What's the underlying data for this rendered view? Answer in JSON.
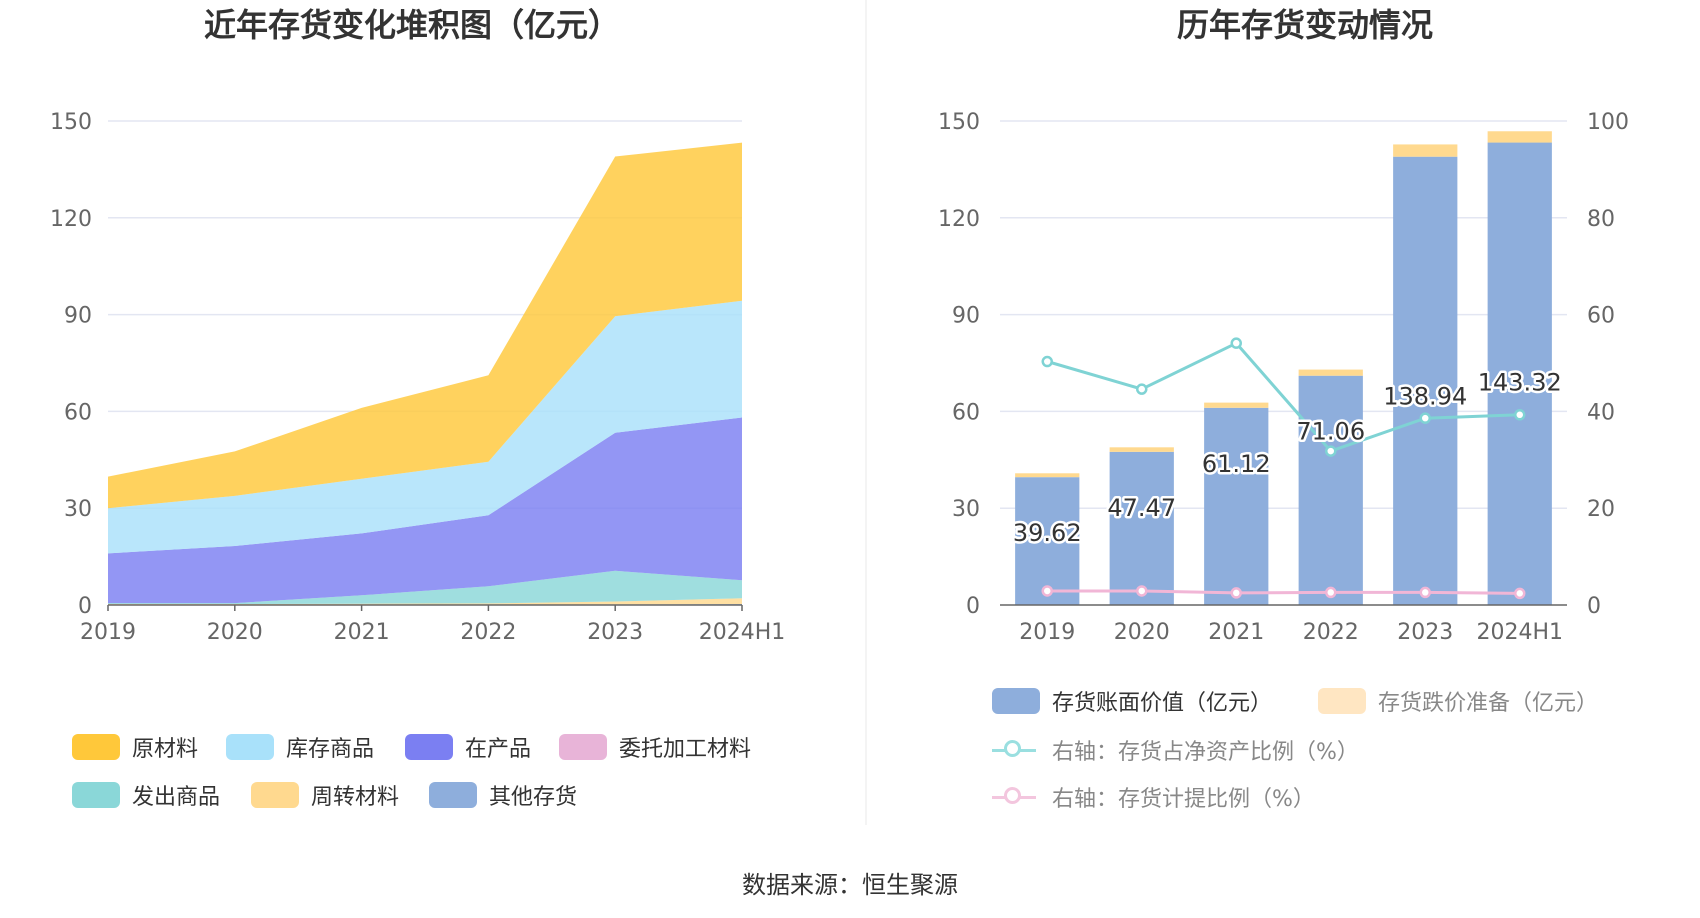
{
  "source": "数据来源：恒生聚源",
  "chart_data": [
    {
      "type": "area",
      "stacked": true,
      "title": "近年存货变化堆积图（亿元）",
      "categories": [
        "2019",
        "2020",
        "2021",
        "2022",
        "2023",
        "2024H1"
      ],
      "ylim": [
        0,
        150
      ],
      "yticks": [
        "0",
        "30",
        "60",
        "90",
        "120",
        "150"
      ],
      "series": [
        {
          "name": "其他存货",
          "color": "#8eaedc",
          "values": [
            0.1,
            0.1,
            0.1,
            0.1,
            0.2,
            0.3
          ]
        },
        {
          "name": "周转材料",
          "color": "#ffd98f",
          "values": [
            0.2,
            0.2,
            0.3,
            0.4,
            0.9,
            1.8
          ]
        },
        {
          "name": "发出商品",
          "color": "#8ad7d8",
          "values": [
            0.3,
            0.3,
            2.6,
            5.3,
            9.5,
            5.6
          ]
        },
        {
          "name": "委托加工材料",
          "color": "#e8b4d8",
          "values": [
            0,
            0,
            0,
            0,
            0,
            0
          ]
        },
        {
          "name": "在产品",
          "color": "#7b7ff2",
          "values": [
            15.4,
            17.7,
            19.2,
            22.0,
            42.8,
            50.4
          ]
        },
        {
          "name": "库存商品",
          "color": "#a9e1fa",
          "values": [
            14.0,
            15.5,
            16.9,
            16.6,
            36.1,
            36.2
          ]
        },
        {
          "name": "原材料",
          "color": "#ffc83a",
          "values": [
            9.8,
            13.8,
            22.0,
            26.8,
            49.5,
            49.0
          ]
        }
      ],
      "legend_order": [
        "原材料",
        "库存商品",
        "在产品",
        "委托加工材料",
        "发出商品",
        "周转材料",
        "其他存货"
      ]
    },
    {
      "type": "bar+line",
      "title": "历年存货变动情况",
      "categories": [
        "2019",
        "2020",
        "2021",
        "2022",
        "2023",
        "2024H1"
      ],
      "ylim": [
        0,
        150
      ],
      "yticks": [
        "0",
        "30",
        "60",
        "90",
        "120",
        "150"
      ],
      "y2lim": [
        0,
        100
      ],
      "y2ticks": [
        "0",
        "20",
        "40",
        "60",
        "80",
        "100"
      ],
      "bars": [
        {
          "name": "存货账面价值（亿元）",
          "color": "#8eaedc",
          "values": [
            39.62,
            47.47,
            61.12,
            71.06,
            138.94,
            143.32
          ],
          "labels": [
            "39.62",
            "47.47",
            "61.12",
            "71.06",
            "138.94",
            "143.32"
          ]
        },
        {
          "name": "存货跌价准备（亿元）",
          "color": "#ffd98f",
          "values": [
            1.2,
            1.4,
            1.6,
            1.9,
            3.8,
            3.5
          ]
        }
      ],
      "lines": [
        {
          "name": "右轴：存货占净资产比例（%）",
          "color": "#7fd3d4",
          "axis": "right",
          "values": [
            50.3,
            44.6,
            54.1,
            31.8,
            38.6,
            39.3
          ]
        },
        {
          "name": "右轴：存货计提比例（%）",
          "color": "#f1b6d6",
          "axis": "right",
          "values": [
            2.9,
            2.9,
            2.5,
            2.6,
            2.6,
            2.4
          ]
        }
      ]
    }
  ]
}
